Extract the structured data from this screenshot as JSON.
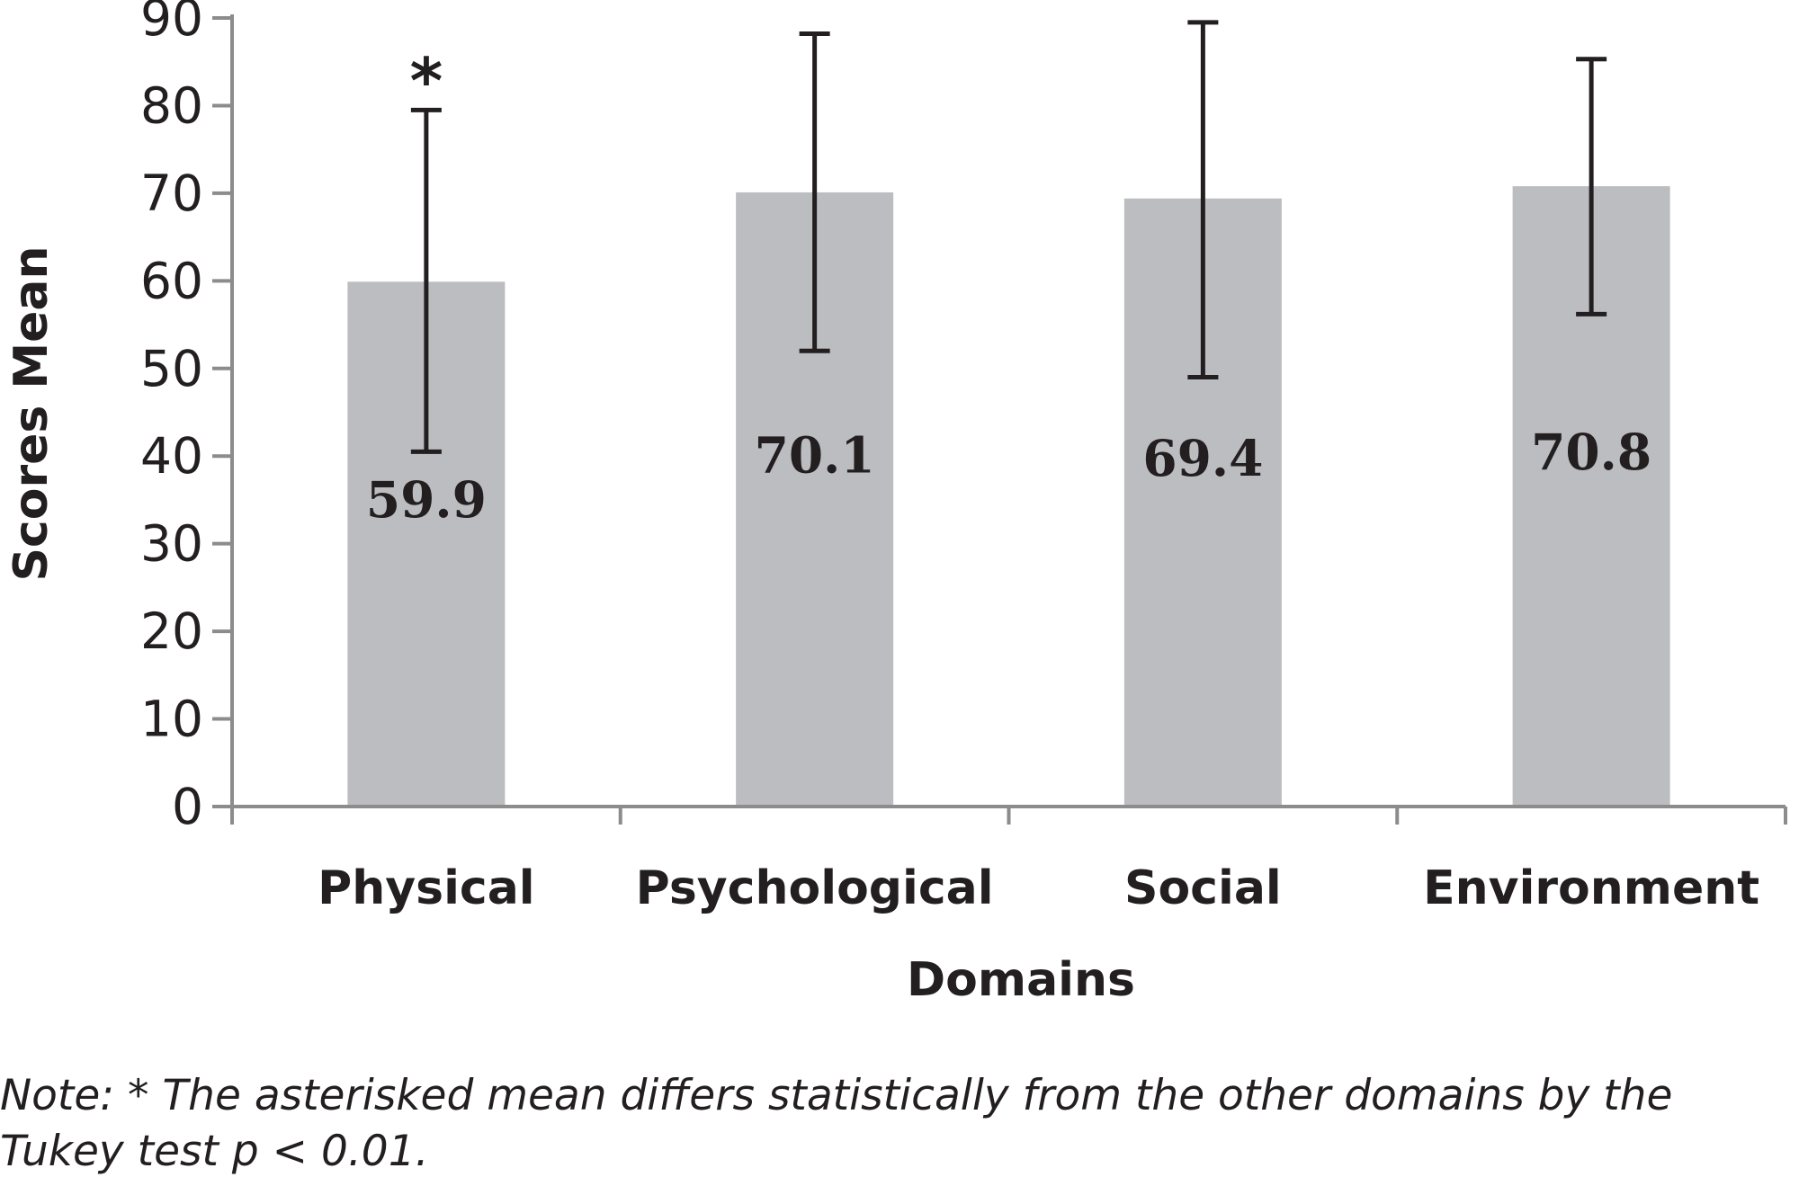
{
  "chart_data": {
    "type": "bar",
    "categories": [
      "Physical",
      "Psychological",
      "Social",
      "Environment"
    ],
    "values": [
      59.9,
      70.1,
      69.4,
      70.8
    ],
    "value_labels": [
      "59.9",
      "70.1",
      "69.4",
      "70.8"
    ],
    "error_bars": [
      {
        "low": 40.5,
        "high": 79.5
      },
      {
        "low": 52.0,
        "high": 88.2
      },
      {
        "low": 49.0,
        "high": 89.5
      },
      {
        "low": 56.2,
        "high": 85.3
      }
    ],
    "significance_marks": [
      "*",
      "",
      "",
      ""
    ],
    "xlabel": "Domains",
    "ylabel": "Scores Mean",
    "ylim": [
      0,
      90
    ],
    "yticks": [
      0,
      10,
      20,
      30,
      40,
      50,
      60,
      70,
      80,
      90
    ],
    "grid": false,
    "legend": "none",
    "colors": {
      "bar": "#bcbdc0",
      "axis": "#8c8c8c",
      "error_bar": "#231f20",
      "text": "#231f20"
    }
  },
  "note": "Note: * The asterisked mean differs statistically from the other domains by the Tukey test p < 0.01."
}
